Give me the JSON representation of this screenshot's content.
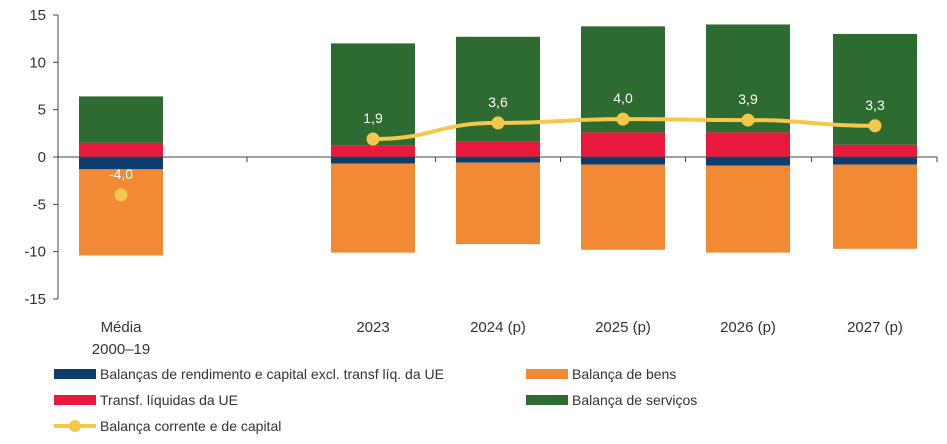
{
  "chart_data": {
    "type": "bar",
    "stacked": true,
    "categories": [
      [
        "Média",
        "2000–19"
      ],
      [
        "2023"
      ],
      [
        "2024 (p)"
      ],
      [
        "2025 (p)"
      ],
      [
        "2026 (p)"
      ],
      [
        "2027 (p)"
      ]
    ],
    "ylim": [
      -15,
      15
    ],
    "yticks": [
      -15,
      -10,
      -5,
      0,
      5,
      10,
      15
    ],
    "series": [
      {
        "name": "Balanças de rendimento e capital excl. transf líq. da UE",
        "type": "bar",
        "color": "#0d3d6e",
        "values": [
          -1.3,
          -0.7,
          -0.6,
          -0.8,
          -0.9,
          -0.8
        ]
      },
      {
        "name": "Transf. líquidas da UE",
        "type": "bar",
        "color": "#e8193c",
        "values": [
          1.5,
          1.2,
          1.6,
          2.6,
          2.6,
          1.3
        ]
      },
      {
        "name": "Balança de bens",
        "type": "bar",
        "color": "#f28a35",
        "values": [
          -9.1,
          -9.4,
          -8.6,
          -9.0,
          -9.2,
          -8.9
        ]
      },
      {
        "name": "Balança de serviços",
        "type": "bar",
        "color": "#2e6b30",
        "values": [
          4.9,
          10.8,
          11.1,
          11.2,
          11.4,
          11.7
        ]
      },
      {
        "name": "Balança corrente e de capital",
        "type": "line",
        "color": "#f5c84c",
        "values": [
          -4.0,
          1.9,
          3.6,
          4.0,
          3.9,
          3.3
        ],
        "labels": [
          "-4,0",
          "1,9",
          "3,6",
          "4,0",
          "3,9",
          "3,3"
        ]
      }
    ],
    "legend_position": "bottom",
    "grid": false
  }
}
